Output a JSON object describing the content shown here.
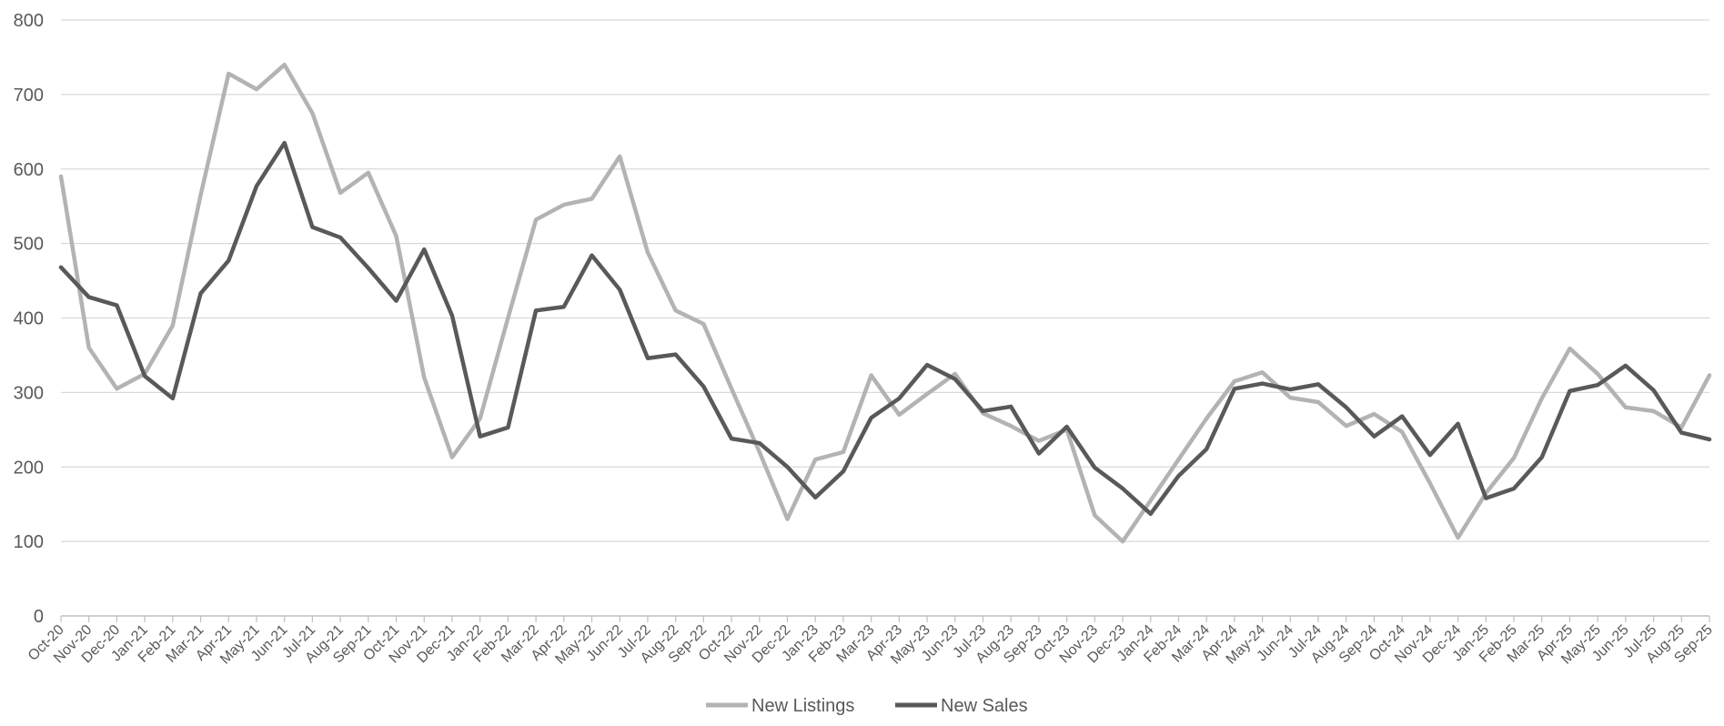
{
  "chart_data": {
    "type": "line",
    "title": "",
    "xlabel": "",
    "ylabel": "",
    "ylim": [
      0,
      800
    ],
    "yticks": [
      0,
      100,
      200,
      300,
      400,
      500,
      600,
      700,
      800
    ],
    "grid": true,
    "legend_position": "bottom-center",
    "x": [
      "Oct-20",
      "Nov-20",
      "Dec-20",
      "Jan-21",
      "Feb-21",
      "Mar-21",
      "Apr-21",
      "May-21",
      "Jun-21",
      "Jul-21",
      "Aug-21",
      "Sep-21",
      "Oct-21",
      "Nov-21",
      "Dec-21",
      "Jan-22",
      "Feb-22",
      "Mar-22",
      "Apr-22",
      "May-22",
      "Jun-22",
      "Jul-22",
      "Aug-22",
      "Sep-22",
      "Oct-22",
      "Nov-22",
      "Dec-22",
      "Jan-23",
      "Feb-23",
      "Mar-23",
      "Apr-23",
      "May-23",
      "Jun-23",
      "Jul-23",
      "Aug-23",
      "Sep-23",
      "Oct-23",
      "Nov-23",
      "Dec-23",
      "Jan-24",
      "Feb-24",
      "Mar-24",
      "Apr-24",
      "May-24",
      "Jun-24",
      "Jul-24",
      "Aug-24",
      "Sep-24",
      "Oct-24",
      "Nov-24",
      "Dec-24",
      "Jan-25",
      "Feb-25",
      "Mar-25",
      "Apr-25",
      "May-25",
      "Jun-25",
      "Jul-25",
      "Aug-25",
      "Sep-25"
    ],
    "series": [
      {
        "name": "New Listings",
        "color": "#b3b3b3",
        "values": [
          590,
          360,
          305,
          325,
          390,
          565,
          728,
          707,
          740,
          675,
          568,
          595,
          510,
          320,
          213,
          265,
          400,
          532,
          552,
          560,
          617,
          488,
          410,
          392,
          305,
          220,
          130,
          210,
          220,
          323,
          270,
          298,
          325,
          272,
          255,
          235,
          250,
          135,
          100,
          155,
          210,
          265,
          315,
          327,
          293,
          287,
          255,
          271,
          247,
          178,
          105,
          165,
          212,
          292,
          359,
          325,
          280,
          275,
          253,
          323
        ]
      },
      {
        "name": "New Sales",
        "color": "#595959",
        "values": [
          468,
          428,
          417,
          322,
          292,
          433,
          477,
          577,
          635,
          522,
          508,
          467,
          423,
          492,
          403,
          241,
          253,
          410,
          415,
          484,
          438,
          346,
          351,
          308,
          238,
          232,
          200,
          159,
          194,
          266,
          292,
          337,
          318,
          275,
          281,
          218,
          254,
          199,
          171,
          137,
          188,
          224,
          305,
          312,
          304,
          311,
          280,
          241,
          268,
          216,
          258,
          158,
          171,
          213,
          302,
          310,
          336,
          303,
          246,
          237
        ]
      }
    ]
  }
}
